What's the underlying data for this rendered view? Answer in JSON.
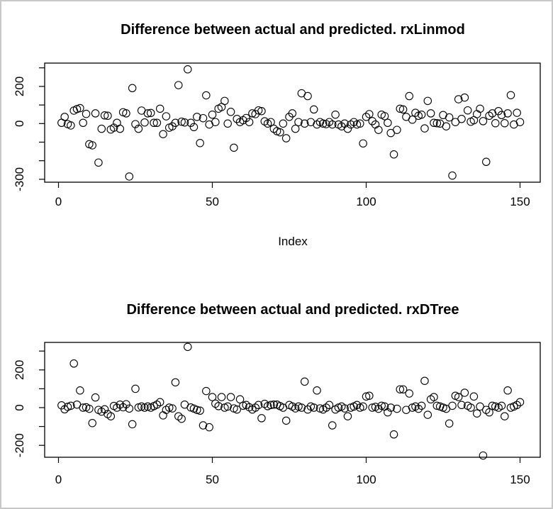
{
  "figure": {
    "background": "#ffffff",
    "frame_color": "#c8c8c8",
    "plot_stroke_color": "#000000",
    "marker": "open-circle"
  },
  "chart_data": [
    {
      "type": "scatter",
      "title": "Difference between actual and predicted. rxLinmod",
      "xlabel": "Index",
      "ylabel": "",
      "marker": "open-circle",
      "legend": "none",
      "grid": false,
      "x_start": 1,
      "xlim": [
        -5,
        156
      ],
      "ylim": [
        -325,
        330
      ],
      "xticks": [
        0,
        50,
        100,
        150
      ],
      "xtick_labels": [
        "0",
        "50",
        "100",
        "150"
      ],
      "yticks": [
        -300,
        -200,
        -100,
        0,
        100,
        200,
        300
      ],
      "ytick_labels": [
        "-300",
        "",
        "",
        "0",
        "",
        "200",
        ""
      ],
      "values": [
        4,
        36,
        -3,
        -10,
        70,
        78,
        83,
        4,
        52,
        -111,
        -117,
        55,
        -210,
        -28,
        44,
        42,
        -32,
        -22,
        4,
        -28,
        61,
        55,
        -285,
        191,
        -3,
        -28,
        70,
        6,
        55,
        57,
        4,
        4,
        80,
        -57,
        39,
        -22,
        -15,
        4,
        207,
        10,
        6,
        292,
        4,
        -19,
        36,
        -105,
        29,
        152,
        -5,
        48,
        8,
        80,
        89,
        122,
        0,
        63,
        -130,
        25,
        8,
        18,
        30,
        8,
        55,
        51,
        71,
        67,
        12,
        0,
        8,
        -28,
        -41,
        -47,
        0,
        -79,
        36,
        55,
        -28,
        8,
        163,
        0,
        148,
        8,
        76,
        -5,
        8,
        0,
        -3,
        8,
        -5,
        48,
        -5,
        -15,
        0,
        -28,
        -5,
        8,
        -5,
        0,
        -107,
        36,
        51,
        13,
        -5,
        -34,
        48,
        40,
        4,
        -51,
        -166,
        -34,
        80,
        76,
        36,
        148,
        21,
        58,
        42,
        48,
        -26,
        122,
        55,
        4,
        2,
        0,
        46,
        -15,
        33,
        -280,
        8,
        131,
        25,
        140,
        71,
        10,
        18,
        51,
        80,
        13,
        -206,
        42,
        55,
        2,
        67,
        46,
        2,
        55,
        153,
        -5,
        58,
        8
      ]
    },
    {
      "type": "scatter",
      "title": "Difference between actual and predicted. rxDTree",
      "xlabel": "",
      "ylabel": "",
      "marker": "open-circle",
      "legend": "none",
      "grid": false,
      "x_start": 1,
      "xlim": [
        -5,
        156
      ],
      "ylim": [
        -265,
        345
      ],
      "xticks": [
        0,
        50,
        100,
        150
      ],
      "xtick_labels": [
        "0",
        "50",
        "100",
        "150"
      ],
      "yticks": [
        -200,
        -100,
        0,
        100,
        200,
        300
      ],
      "ytick_labels": [
        "-200",
        "",
        "0",
        "",
        "200",
        ""
      ],
      "values": [
        12,
        -9,
        4,
        10,
        234,
        16,
        91,
        0,
        2,
        -6,
        -82,
        54,
        -12,
        -21,
        -9,
        -34,
        -46,
        9,
        0,
        16,
        2,
        18,
        -5,
        -88,
        100,
        1,
        6,
        0,
        6,
        0,
        8,
        16,
        29,
        -41,
        -12,
        0,
        -4,
        134,
        -46,
        -59,
        16,
        322,
        1,
        -5,
        -12,
        -16,
        -94,
        88,
        -104,
        56,
        21,
        8,
        56,
        0,
        6,
        56,
        -4,
        -10,
        44,
        10,
        14,
        2,
        -10,
        0,
        14,
        -56,
        20,
        8,
        14,
        16,
        16,
        8,
        0,
        -69,
        14,
        6,
        -4,
        6,
        0,
        138,
        -10,
        6,
        0,
        91,
        -4,
        -10,
        0,
        14,
        -94,
        -10,
        0,
        6,
        -4,
        -46,
        0,
        6,
        14,
        0,
        6,
        59,
        63,
        0,
        4,
        -6,
        10,
        6,
        -25,
        0,
        -142,
        -6,
        97,
        97,
        -12,
        75,
        0,
        6,
        -6,
        10,
        142,
        -38,
        44,
        56,
        10,
        6,
        0,
        -6,
        -84,
        10,
        63,
        56,
        14,
        79,
        10,
        0,
        59,
        -31,
        6,
        -254,
        -12,
        -25,
        10,
        6,
        0,
        10,
        -46,
        91,
        0,
        6,
        14,
        29
      ]
    }
  ]
}
